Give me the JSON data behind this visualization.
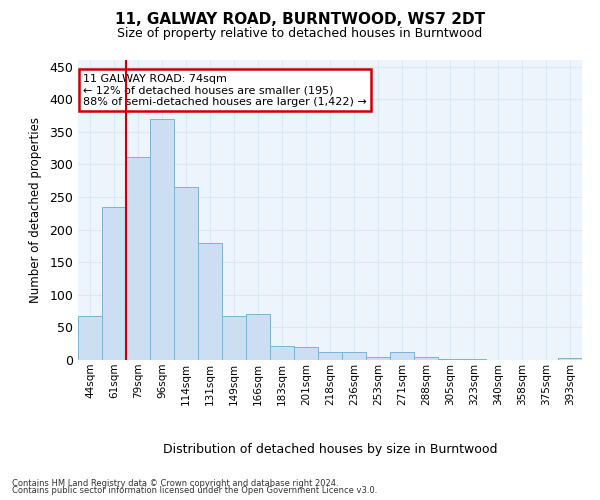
{
  "title": "11, GALWAY ROAD, BURNTWOOD, WS7 2DT",
  "subtitle": "Size of property relative to detached houses in Burntwood",
  "xlabel": "Distribution of detached houses by size in Burntwood",
  "ylabel": "Number of detached properties",
  "categories": [
    "44sqm",
    "61sqm",
    "79sqm",
    "96sqm",
    "114sqm",
    "131sqm",
    "149sqm",
    "166sqm",
    "183sqm",
    "201sqm",
    "218sqm",
    "236sqm",
    "253sqm",
    "271sqm",
    "288sqm",
    "305sqm",
    "323sqm",
    "340sqm",
    "358sqm",
    "375sqm",
    "393sqm"
  ],
  "values": [
    68,
    235,
    312,
    370,
    265,
    180,
    67,
    70,
    22,
    20,
    12,
    12,
    5,
    12,
    5,
    2,
    1,
    0,
    0,
    0,
    3
  ],
  "bar_color": "#ccdff2",
  "bar_edge_color": "#7ab3d4",
  "annotation_text": "11 GALWAY ROAD: 74sqm\n← 12% of detached houses are smaller (195)\n88% of semi-detached houses are larger (1,422) →",
  "annotation_box_color": "#ffffff",
  "annotation_box_edge": "#cc0000",
  "grid_color": "#d8e8f5",
  "background_color": "#eef4fb",
  "footer_line1": "Contains HM Land Registry data © Crown copyright and database right 2024.",
  "footer_line2": "Contains public sector information licensed under the Open Government Licence v3.0.",
  "ylim": [
    0,
    460
  ],
  "yticks": [
    0,
    50,
    100,
    150,
    200,
    250,
    300,
    350,
    400,
    450
  ],
  "red_line_color": "#cc0000",
  "red_line_x": 1.5
}
